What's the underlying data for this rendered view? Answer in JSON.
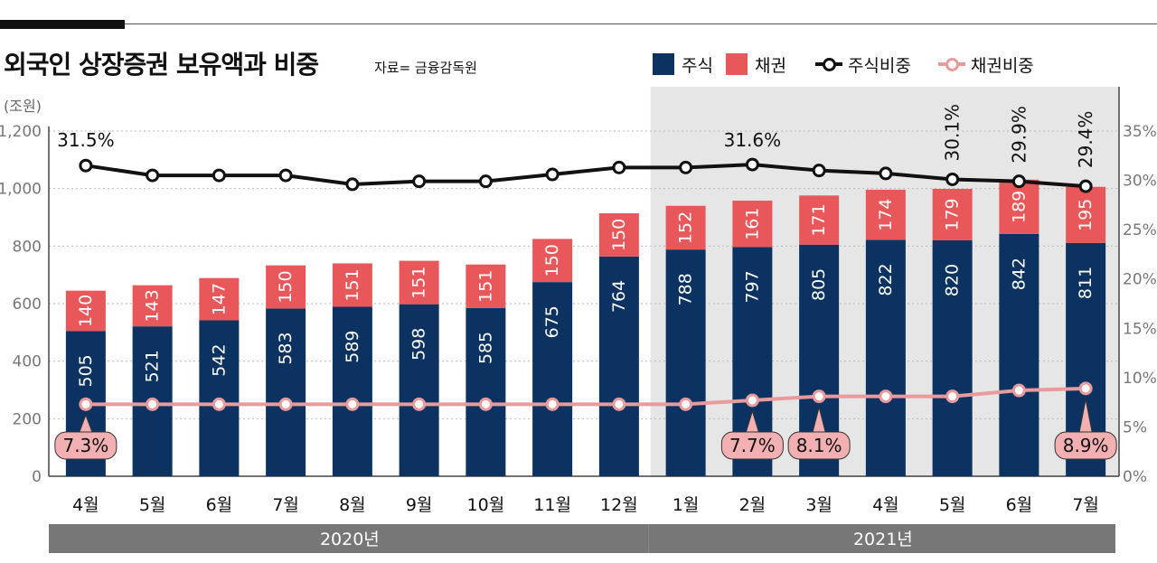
{
  "header": {
    "title": "외국인 상장증권 보유액과 비중",
    "source": "자료= 금융감독원",
    "unit": "(조원)"
  },
  "legend": {
    "stock": "주식",
    "bond": "채권",
    "stock_ratio": "주식비중",
    "bond_ratio": "채권비중"
  },
  "colors": {
    "stock": "#0b3260",
    "bond": "#e8585a",
    "stock_line": "#111111",
    "bond_line": "#e99a9d",
    "shade": "#e6e6e6",
    "year_band": "#777777"
  },
  "chart_data": {
    "type": "bar",
    "stacked": true,
    "categories": [
      "4월",
      "5월",
      "6월",
      "7월",
      "8월",
      "9월",
      "10월",
      "11월",
      "12월",
      "1월",
      "2월",
      "3월",
      "4월",
      "5월",
      "6월",
      "7월"
    ],
    "series": [
      {
        "name": "주식",
        "values": [
          505,
          521,
          542,
          583,
          589,
          598,
          585,
          675,
          764,
          788,
          797,
          805,
          822,
          820,
          842,
          811
        ]
      },
      {
        "name": "채권",
        "values": [
          140,
          143,
          147,
          150,
          151,
          151,
          151,
          150,
          150,
          152,
          161,
          171,
          174,
          179,
          189,
          195
        ]
      }
    ],
    "lines": [
      {
        "name": "주식비중",
        "axis": "right",
        "values": [
          31.5,
          30.5,
          30.5,
          30.5,
          29.6,
          29.9,
          29.9,
          30.6,
          31.3,
          31.3,
          31.6,
          31.0,
          30.7,
          30.1,
          29.9,
          29.4
        ]
      },
      {
        "name": "채권비중",
        "axis": "right",
        "values": [
          7.3,
          7.3,
          7.3,
          7.3,
          7.3,
          7.3,
          7.3,
          7.3,
          7.3,
          7.3,
          7.7,
          8.1,
          8.1,
          8.1,
          8.7,
          8.9
        ]
      }
    ],
    "labels": {
      "stock_ratio": [
        {
          "index": 0,
          "text": "31.5%"
        },
        {
          "index": 10,
          "text": "31.6%"
        },
        {
          "index": 13,
          "text": "30.1%"
        },
        {
          "index": 14,
          "text": "29.9%"
        },
        {
          "index": 15,
          "text": "29.4%"
        }
      ],
      "bond_ratio": [
        {
          "index": 0,
          "text": "7.3%"
        },
        {
          "index": 10,
          "text": "7.7%"
        },
        {
          "index": 11,
          "text": "8.1%"
        },
        {
          "index": 15,
          "text": "8.9%"
        }
      ]
    },
    "y_left": {
      "min": 0,
      "max": 1200,
      "ticks": [
        0,
        200,
        400,
        600,
        800,
        "1,000",
        "1,200"
      ]
    },
    "y_right": {
      "min": 0,
      "max": 35,
      "ticks": [
        "0%",
        "5%",
        "10%",
        "15%",
        "20%",
        "25%",
        "30%",
        "35%"
      ]
    },
    "years": [
      {
        "label": "2020년",
        "from": 0,
        "to": 8
      },
      {
        "label": "2021년",
        "from": 9,
        "to": 15
      }
    ],
    "shaded_from_index": 9
  }
}
